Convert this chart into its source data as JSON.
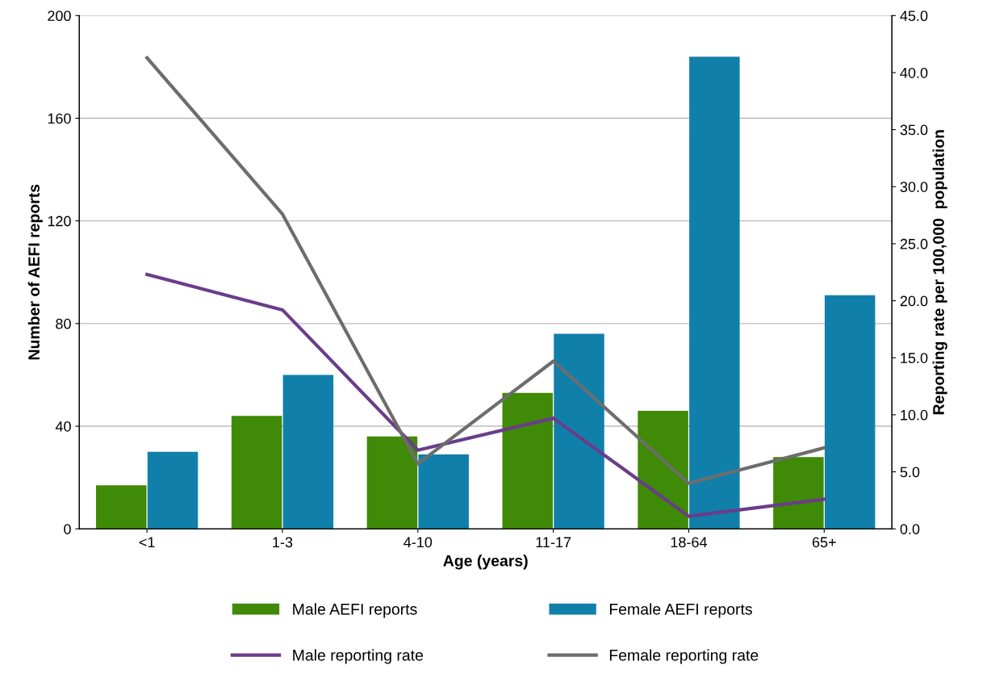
{
  "chart_data": {
    "type": "bar",
    "xlabel": "Age (years)",
    "ylabel": "Number of AEFI reports",
    "y2label": "Reporting rate per 100,000  population",
    "categories": [
      "<1",
      "1-3",
      "4-10",
      "11-17",
      "18-64",
      "65+"
    ],
    "series": [
      {
        "name": "Male AEFI reports",
        "color": "#3f8a06",
        "values": [
          17,
          44,
          36,
          53,
          46,
          28
        ]
      },
      {
        "name": "Female AEFI reports",
        "color": "#1080aa",
        "values": [
          30,
          60,
          29,
          76,
          184,
          91
        ]
      },
      {
        "name": "Male reporting rate",
        "type": "line",
        "axis": "y2",
        "color": "#6a3d8a",
        "values": [
          22.3,
          19.2,
          6.9,
          9.7,
          1.1,
          2.6
        ]
      },
      {
        "name": "Female reporting rate",
        "type": "line",
        "axis": "y2",
        "color": "#6d6d6d",
        "values": [
          41.3,
          27.6,
          5.7,
          14.7,
          4.0,
          7.1
        ]
      }
    ],
    "ylim": [
      0,
      200
    ],
    "yticks": [
      0,
      40,
      80,
      120,
      160,
      200
    ],
    "y2lim": [
      0,
      45
    ],
    "y2ticks": [
      {
        "value": 0,
        "label": "0.0"
      },
      {
        "value": 5,
        "label": "5.0"
      },
      {
        "value": 10,
        "label": "10.0"
      },
      {
        "value": 15,
        "label": "15.0"
      },
      {
        "value": 20,
        "label": "20.0"
      },
      {
        "value": 25,
        "label": "25.0"
      },
      {
        "value": 30,
        "label": "30.0"
      },
      {
        "value": 35,
        "label": "35.0"
      },
      {
        "value": 40,
        "label": "40.0"
      },
      {
        "value": 45,
        "label": "45.0"
      }
    ],
    "grid": "y",
    "legend": "bottom"
  }
}
